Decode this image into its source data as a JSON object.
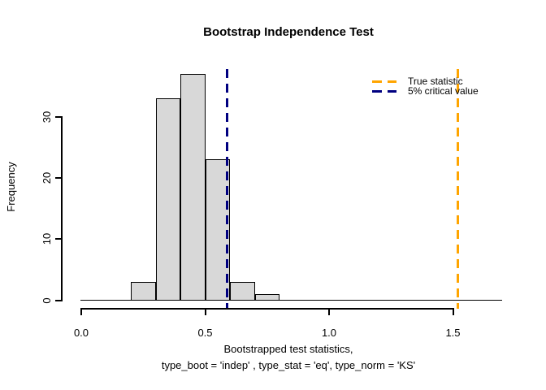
{
  "window": {
    "background": "#FFFFFF"
  },
  "chart_data": {
    "type": "bar",
    "subtype": "histogram",
    "title": "Bootstrap Independence Test",
    "ylabel": "Frequency",
    "xlabel_line1": "Bootstrapped test statistics,",
    "xlabel_line2": "type_boot = 'indep' , type_stat = 'eq', type_norm = 'KS'",
    "bins": {
      "start": 0.2,
      "width": 0.1,
      "counts": [
        3,
        33,
        37,
        23,
        3,
        1
      ]
    },
    "bin_edges": [
      0.2,
      0.3,
      0.4,
      0.5,
      0.6,
      0.7,
      0.8
    ],
    "x_ticks": [
      0.0,
      0.5,
      1.0,
      1.5
    ],
    "x_tick_labels": [
      "0.0",
      "0.5",
      "1.0",
      "1.5"
    ],
    "y_ticks": [
      0,
      10,
      20,
      30
    ],
    "y_tick_labels": [
      "0",
      "10",
      "20",
      "30"
    ],
    "xlim": [
      0.0,
      1.7
    ],
    "ylim": [
      0,
      38
    ],
    "grid": false,
    "bar_fill": "#D8D8D8",
    "bar_border": "#000000",
    "vlines": [
      {
        "id": "true-statistic",
        "x": 1.52,
        "color": "#FFA500",
        "style": "dashed",
        "label": "True statistic"
      },
      {
        "id": "critical-value-5pct",
        "x": 0.59,
        "color": "#000080",
        "style": "dashed",
        "label": "5% critical value"
      }
    ],
    "legend": {
      "position": "top-right",
      "border": false,
      "entries": [
        {
          "label": "True statistic",
          "color": "#FFA500",
          "style": "dashed"
        },
        {
          "label": "5% critical value",
          "color": "#000080",
          "style": "dashed"
        }
      ]
    }
  }
}
